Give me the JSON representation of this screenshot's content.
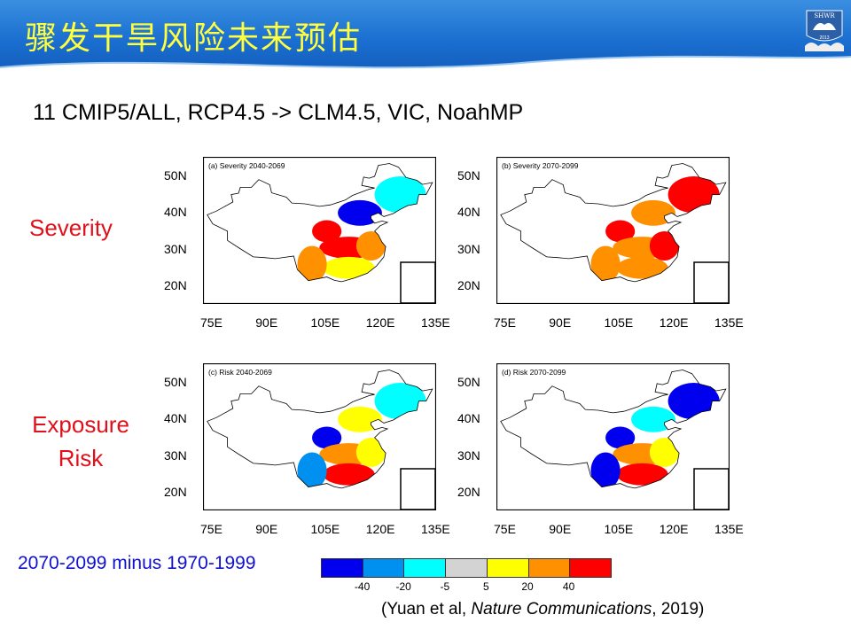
{
  "header": {
    "title": "骤发干旱风险未来预估",
    "logo_text": "SHWR",
    "logo_year": "2013"
  },
  "subtitle": "11 CMIP5/ALL, RCP4.5 -> CLM4.5, VIC, NoahMP",
  "row_labels": {
    "severity": "Severity",
    "exposure": "Exposure",
    "risk": "Risk"
  },
  "panels": [
    {
      "label": "(a) Severity 2040-2069",
      "regions": {
        "ne": "cyan",
        "n": "blue",
        "nw": "red",
        "c": "red",
        "s": "yellow",
        "sw": "orange",
        "e": "orange"
      }
    },
    {
      "label": "(b) Severity 2070-2099",
      "regions": {
        "ne": "red",
        "n": "orange",
        "nw": "red",
        "c": "orange",
        "s": "orange",
        "sw": "orange",
        "e": "red"
      }
    },
    {
      "label": "(c) Risk 2040-2069",
      "regions": {
        "ne": "cyan",
        "n": "yellow",
        "nw": "blue",
        "c": "orange",
        "s": "red",
        "sw": "lightblue",
        "e": "yellow"
      }
    },
    {
      "label": "(d) Risk 2070-2099",
      "regions": {
        "ne": "blue",
        "n": "cyan",
        "nw": "blue",
        "c": "orange",
        "s": "red",
        "sw": "blue",
        "e": "yellow"
      }
    }
  ],
  "axes": {
    "y_ticks": [
      "50N",
      "40N",
      "30N",
      "20N"
    ],
    "x_ticks": [
      "75E",
      "90E",
      "105E",
      "120E",
      "135E"
    ]
  },
  "colorbar": {
    "colors": {
      "blue": "#0000ee",
      "lightblue": "#0090f0",
      "cyan": "#00ffff",
      "gray": "#d3d3d3",
      "yellow": "#ffff00",
      "orange": "#ff9000",
      "red": "#ff0000"
    },
    "order": [
      "blue",
      "lightblue",
      "cyan",
      "gray",
      "yellow",
      "orange",
      "red"
    ],
    "ticks": [
      "-40",
      "-20",
      "-5",
      "5",
      "20",
      "40"
    ]
  },
  "difference_label": "2070-2099 minus 1970-1999",
  "citation": {
    "pre": "(Yuan et al, ",
    "journal": "Nature Communications",
    "post": ", 2019)"
  }
}
